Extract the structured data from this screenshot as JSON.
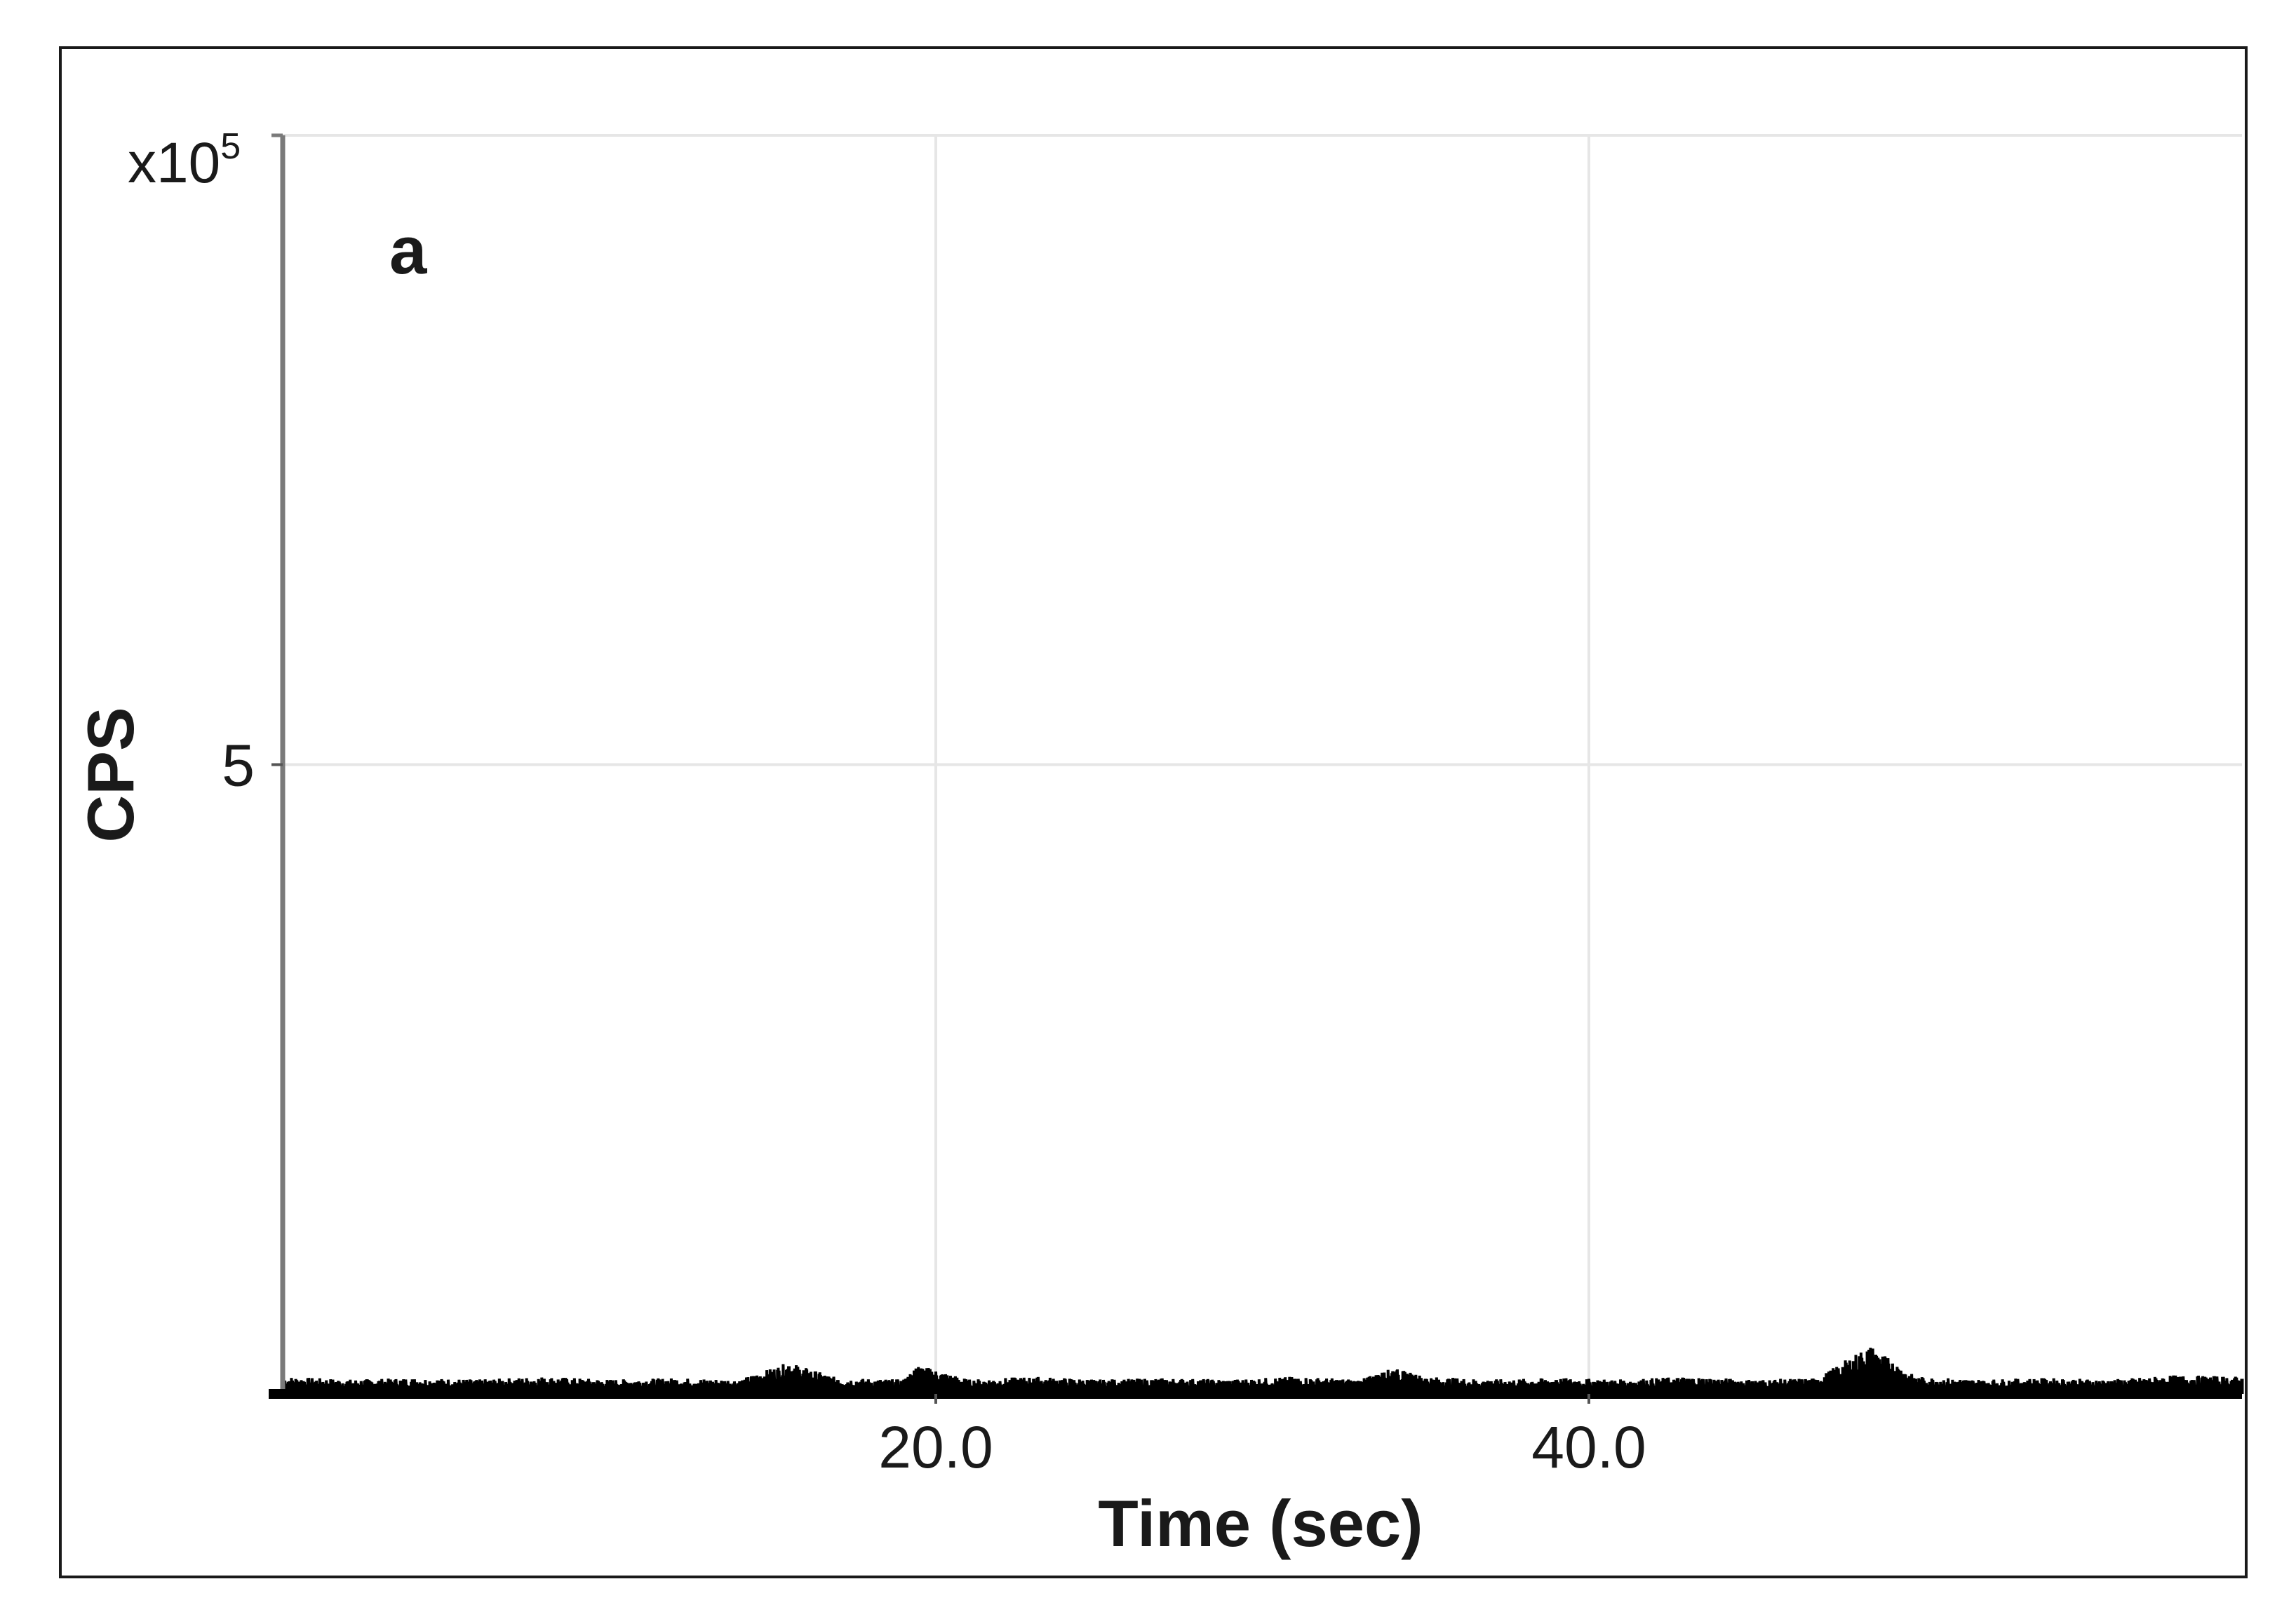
{
  "chart_data": {
    "type": "line",
    "panel_label": "a",
    "xlabel": "Time (sec)",
    "ylabel": "CPS",
    "y_multiplier_label": "x10",
    "y_multiplier_exponent": "5",
    "xlim": [
      0,
      60
    ],
    "ylim": [
      0,
      10
    ],
    "x_ticks": [
      20.0,
      40.0
    ],
    "x_tick_labels": [
      "20.0",
      "40.0"
    ],
    "y_ticks": [
      5
    ],
    "y_tick_labels": [
      "5"
    ],
    "grid": true,
    "series_color": "#000000",
    "grid_color": "#e6e6e6",
    "series": [
      {
        "x": [
          0,
          2,
          4,
          6,
          8,
          10,
          12,
          14,
          15.5,
          17,
          19,
          19.5,
          21,
          23,
          25,
          27,
          29,
          31,
          33,
          34,
          35,
          37,
          39,
          41,
          43,
          45,
          47,
          48.6,
          50,
          52,
          54,
          56,
          58,
          60
        ],
        "y": [
          0.12,
          0.1,
          0.11,
          0.1,
          0.12,
          0.1,
          0.11,
          0.1,
          0.22,
          0.11,
          0.1,
          0.2,
          0.1,
          0.12,
          0.1,
          0.11,
          0.1,
          0.12,
          0.1,
          0.18,
          0.12,
          0.1,
          0.11,
          0.1,
          0.12,
          0.1,
          0.11,
          0.34,
          0.12,
          0.1,
          0.11,
          0.1,
          0.13,
          0.12
        ]
      }
    ]
  }
}
